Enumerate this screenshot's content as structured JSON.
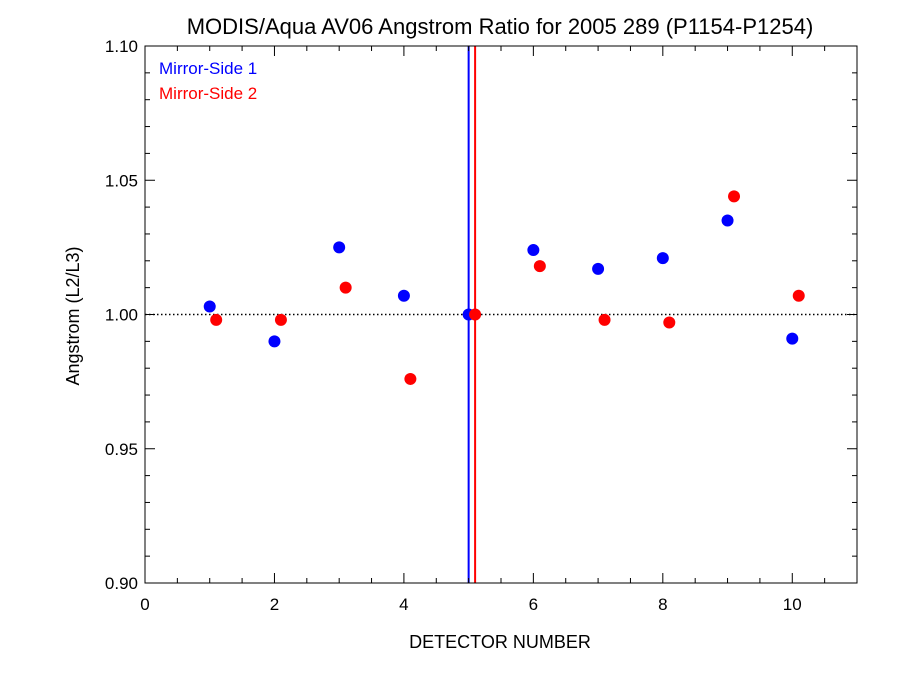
{
  "chart_data": {
    "type": "scatter",
    "title": "MODIS/Aqua AV06 Angstrom Ratio for 2005 289 (P1154-P1254)",
    "xlabel": "DETECTOR NUMBER",
    "ylabel": "Angstrom (L2/L3)",
    "xlim": [
      0,
      11
    ],
    "ylim": [
      0.9,
      1.1
    ],
    "xticks": [
      0,
      2,
      4,
      6,
      8,
      10
    ],
    "xtick_labels": [
      "0",
      "2",
      "4",
      "6",
      "8",
      "10"
    ],
    "yticks": [
      0.9,
      0.95,
      1.0,
      1.05,
      1.1
    ],
    "ytick_labels": [
      "0.90",
      "0.95",
      "1.00",
      "1.05",
      "1.10"
    ],
    "reference_line": {
      "y": 1.0,
      "style": "dotted"
    },
    "vertical_lines": [
      {
        "x": 5.0,
        "color": "#0000ff"
      },
      {
        "x": 5.1,
        "color": "#ff0000"
      }
    ],
    "legend_position": "top-left",
    "series": [
      {
        "name": "Mirror-Side 1",
        "color": "#0000ff",
        "x": [
          1,
          2,
          3,
          4,
          5,
          6,
          7,
          8,
          9,
          10
        ],
        "y": [
          1.003,
          0.99,
          1.025,
          1.007,
          1.0,
          1.024,
          1.017,
          1.021,
          1.035,
          0.991
        ]
      },
      {
        "name": "Mirror-Side 2",
        "color": "#ff0000",
        "x": [
          1.1,
          2.1,
          3.1,
          4.1,
          5.1,
          6.1,
          7.1,
          8.1,
          9.1,
          10.1
        ],
        "y": [
          0.998,
          0.998,
          1.01,
          0.976,
          1.0,
          1.018,
          0.998,
          0.997,
          1.044,
          1.007
        ]
      }
    ]
  }
}
